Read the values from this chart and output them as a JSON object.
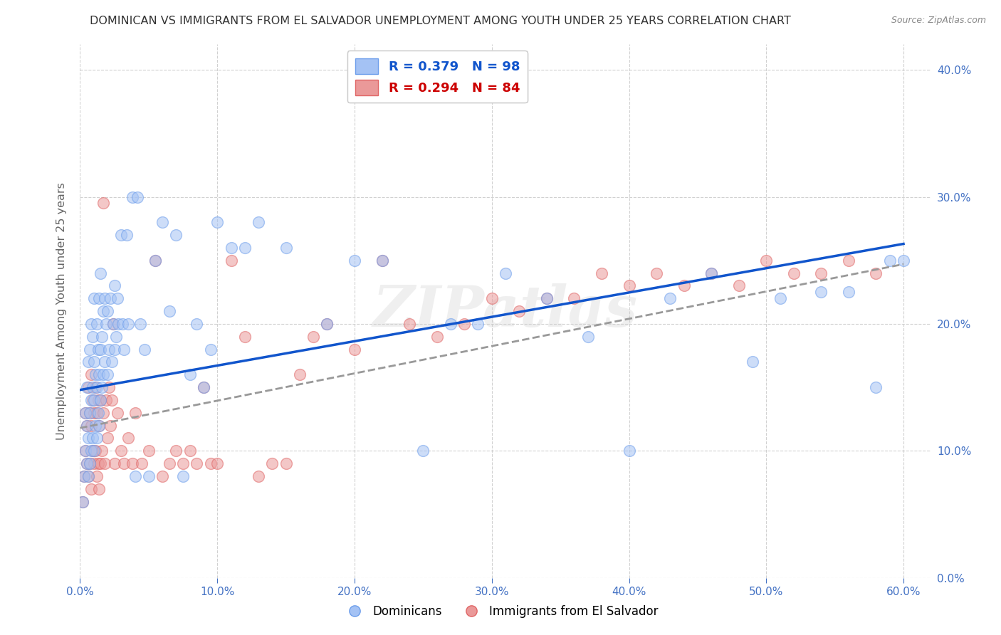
{
  "title": "DOMINICAN VS IMMIGRANTS FROM EL SALVADOR UNEMPLOYMENT AMONG YOUTH UNDER 25 YEARS CORRELATION CHART",
  "source": "Source: ZipAtlas.com",
  "ylabel": "Unemployment Among Youth under 25 years",
  "xlim": [
    0.0,
    0.62
  ],
  "ylim": [
    0.0,
    0.42
  ],
  "xticks": [
    0.0,
    0.1,
    0.2,
    0.3,
    0.4,
    0.5,
    0.6
  ],
  "yticks": [
    0.0,
    0.1,
    0.2,
    0.3,
    0.4
  ],
  "xticklabels": [
    "0.0%",
    "10.0%",
    "20.0%",
    "30.0%",
    "40.0%",
    "50.0%",
    "60.0%"
  ],
  "yticklabels_right": [
    "0.0%",
    "10.0%",
    "20.0%",
    "30.0%",
    "40.0%"
  ],
  "legend_labels": [
    "Dominicans",
    "Immigrants from El Salvador"
  ],
  "R_blue": 0.379,
  "N_blue": 98,
  "R_pink": 0.294,
  "N_pink": 84,
  "blue_color": "#a4c2f4",
  "pink_color": "#ea9999",
  "blue_edge_color": "#6d9eeb",
  "pink_edge_color": "#e06666",
  "blue_line_color": "#1155cc",
  "pink_line_color": "#999999",
  "watermark": "ZIPatlas",
  "background_color": "#ffffff",
  "grid_color": "#cccccc",
  "blue_trend_x0": 0.0,
  "blue_trend_y0": 0.148,
  "blue_trend_x1": 0.6,
  "blue_trend_y1": 0.263,
  "pink_trend_x0": 0.0,
  "pink_trend_y0": 0.118,
  "pink_trend_x1": 0.6,
  "pink_trend_y1": 0.247,
  "blue_scatter_x": [
    0.002,
    0.003,
    0.004,
    0.004,
    0.005,
    0.005,
    0.005,
    0.006,
    0.006,
    0.006,
    0.007,
    0.007,
    0.007,
    0.008,
    0.008,
    0.008,
    0.009,
    0.009,
    0.009,
    0.01,
    0.01,
    0.01,
    0.01,
    0.011,
    0.011,
    0.012,
    0.012,
    0.012,
    0.013,
    0.013,
    0.014,
    0.014,
    0.014,
    0.015,
    0.015,
    0.015,
    0.016,
    0.016,
    0.017,
    0.017,
    0.018,
    0.018,
    0.019,
    0.02,
    0.02,
    0.021,
    0.022,
    0.023,
    0.024,
    0.025,
    0.025,
    0.026,
    0.027,
    0.028,
    0.03,
    0.031,
    0.032,
    0.034,
    0.035,
    0.038,
    0.04,
    0.042,
    0.044,
    0.047,
    0.05,
    0.055,
    0.06,
    0.065,
    0.07,
    0.075,
    0.08,
    0.085,
    0.09,
    0.095,
    0.1,
    0.11,
    0.12,
    0.13,
    0.15,
    0.18,
    0.2,
    0.22,
    0.25,
    0.27,
    0.29,
    0.31,
    0.34,
    0.37,
    0.4,
    0.43,
    0.46,
    0.49,
    0.51,
    0.54,
    0.56,
    0.58,
    0.59,
    0.6
  ],
  "blue_scatter_y": [
    0.06,
    0.08,
    0.1,
    0.13,
    0.09,
    0.12,
    0.15,
    0.08,
    0.11,
    0.17,
    0.09,
    0.13,
    0.18,
    0.1,
    0.14,
    0.2,
    0.11,
    0.15,
    0.19,
    0.1,
    0.14,
    0.17,
    0.22,
    0.12,
    0.16,
    0.11,
    0.15,
    0.2,
    0.13,
    0.18,
    0.12,
    0.16,
    0.22,
    0.14,
    0.18,
    0.24,
    0.15,
    0.19,
    0.16,
    0.21,
    0.17,
    0.22,
    0.2,
    0.16,
    0.21,
    0.18,
    0.22,
    0.17,
    0.2,
    0.18,
    0.23,
    0.19,
    0.22,
    0.2,
    0.27,
    0.2,
    0.18,
    0.27,
    0.2,
    0.3,
    0.08,
    0.3,
    0.2,
    0.18,
    0.08,
    0.25,
    0.28,
    0.21,
    0.27,
    0.08,
    0.16,
    0.2,
    0.15,
    0.18,
    0.28,
    0.26,
    0.26,
    0.28,
    0.26,
    0.2,
    0.25,
    0.25,
    0.1,
    0.2,
    0.2,
    0.24,
    0.22,
    0.19,
    0.1,
    0.22,
    0.24,
    0.17,
    0.22,
    0.225,
    0.225,
    0.15,
    0.25,
    0.25
  ],
  "pink_scatter_x": [
    0.002,
    0.003,
    0.004,
    0.004,
    0.005,
    0.005,
    0.006,
    0.006,
    0.007,
    0.007,
    0.008,
    0.008,
    0.008,
    0.009,
    0.009,
    0.01,
    0.01,
    0.011,
    0.011,
    0.012,
    0.012,
    0.013,
    0.013,
    0.014,
    0.014,
    0.015,
    0.015,
    0.016,
    0.017,
    0.018,
    0.019,
    0.02,
    0.021,
    0.022,
    0.023,
    0.025,
    0.027,
    0.03,
    0.032,
    0.035,
    0.038,
    0.04,
    0.045,
    0.05,
    0.055,
    0.06,
    0.065,
    0.07,
    0.075,
    0.08,
    0.085,
    0.09,
    0.095,
    0.1,
    0.11,
    0.12,
    0.13,
    0.14,
    0.15,
    0.16,
    0.17,
    0.18,
    0.2,
    0.22,
    0.24,
    0.26,
    0.28,
    0.3,
    0.32,
    0.34,
    0.36,
    0.38,
    0.4,
    0.42,
    0.44,
    0.46,
    0.48,
    0.5,
    0.52,
    0.54,
    0.56,
    0.58,
    0.017,
    0.024
  ],
  "pink_scatter_y": [
    0.06,
    0.08,
    0.1,
    0.13,
    0.09,
    0.12,
    0.08,
    0.15,
    0.09,
    0.13,
    0.07,
    0.12,
    0.16,
    0.1,
    0.14,
    0.09,
    0.13,
    0.1,
    0.15,
    0.08,
    0.13,
    0.09,
    0.14,
    0.07,
    0.12,
    0.09,
    0.14,
    0.1,
    0.13,
    0.09,
    0.14,
    0.11,
    0.15,
    0.12,
    0.14,
    0.09,
    0.13,
    0.1,
    0.09,
    0.11,
    0.09,
    0.13,
    0.09,
    0.1,
    0.25,
    0.08,
    0.09,
    0.1,
    0.09,
    0.1,
    0.09,
    0.15,
    0.09,
    0.09,
    0.25,
    0.19,
    0.08,
    0.09,
    0.09,
    0.16,
    0.19,
    0.2,
    0.18,
    0.25,
    0.2,
    0.19,
    0.2,
    0.22,
    0.21,
    0.22,
    0.22,
    0.24,
    0.23,
    0.24,
    0.23,
    0.24,
    0.23,
    0.25,
    0.24,
    0.24,
    0.25,
    0.24,
    0.295,
    0.2
  ]
}
